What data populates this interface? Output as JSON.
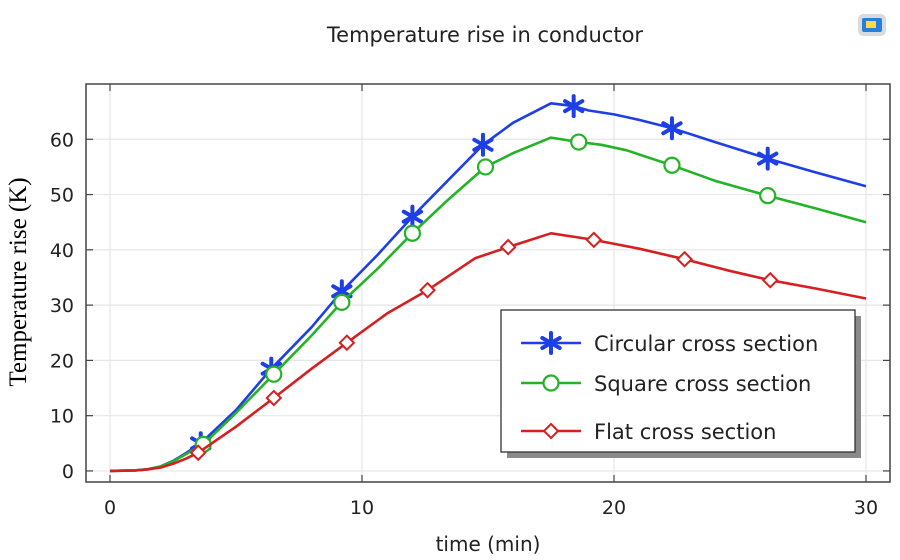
{
  "chart_data": {
    "type": "line",
    "title": "Temperature rise in conductor",
    "xlabel": "time (min)",
    "ylabel": "Temperature rise (K)",
    "xlim": [
      0,
      30
    ],
    "ylim": [
      -2,
      70
    ],
    "xticks": [
      0,
      10,
      20,
      30
    ],
    "yticks": [
      0,
      10,
      20,
      30,
      40,
      50,
      60
    ],
    "grid": true,
    "legend_position": "bottom-right",
    "series": [
      {
        "name": "Circular cross section",
        "color": "#1f3fe6",
        "marker": "asterisk",
        "x": [
          0,
          1,
          1.5,
          2,
          2.5,
          3,
          3.6,
          5,
          6.4,
          8,
          9.2,
          10.6,
          12,
          13.4,
          14.8,
          16,
          17.5,
          18.4,
          19,
          20,
          21,
          22.3,
          24,
          26.1,
          28,
          30
        ],
        "y": [
          0,
          0.1,
          0.3,
          0.8,
          1.8,
          3.2,
          5,
          11,
          18.5,
          26,
          32.5,
          39,
          46,
          52.5,
          59,
          63,
          66.5,
          66,
          65.2,
          64.5,
          63.5,
          62,
          59.5,
          56.5,
          54,
          51.5
        ],
        "marker_x": [
          3.6,
          6.4,
          9.2,
          12,
          14.8,
          18.4,
          22.3,
          26.1
        ]
      },
      {
        "name": "Square cross section",
        "color": "#22b327",
        "marker": "circle",
        "x": [
          0,
          1,
          1.5,
          2,
          2.5,
          3,
          3.7,
          5,
          6.5,
          8,
          9.2,
          10.6,
          12,
          13.4,
          14.9,
          16,
          17.5,
          18.6,
          19.5,
          20.5,
          22.3,
          24,
          26.1,
          28,
          30
        ],
        "y": [
          0,
          0.1,
          0.3,
          0.8,
          1.7,
          3,
          4.8,
          10.5,
          17.5,
          24.5,
          30.5,
          36.5,
          43,
          49,
          55,
          57.5,
          60.3,
          59.5,
          59,
          58,
          55.3,
          52.5,
          49.8,
          47.5,
          45
        ],
        "marker_x": [
          3.7,
          6.5,
          9.2,
          12,
          14.9,
          18.6,
          22.3,
          26.1
        ]
      },
      {
        "name": "Flat cross section",
        "color": "#d42020",
        "marker": "diamond",
        "x": [
          0,
          1,
          1.5,
          2,
          2.5,
          3,
          3.5,
          5,
          6.5,
          8,
          9.4,
          11,
          12.6,
          14.5,
          15.8,
          17.5,
          18.5,
          19.2,
          21,
          22.8,
          24.5,
          26.2,
          28,
          30
        ],
        "y": [
          0,
          0.1,
          0.3,
          0.6,
          1.3,
          2.2,
          3.3,
          8,
          13.2,
          18.5,
          23.2,
          28.5,
          32.7,
          38.5,
          40.5,
          43,
          42.3,
          41.8,
          40.2,
          38.3,
          36.3,
          34.5,
          33,
          31.2
        ],
        "marker_x": [
          3.5,
          6.5,
          9.4,
          12.6,
          15.8,
          19.2,
          22.8,
          26.2
        ]
      }
    ]
  },
  "icons": {
    "corner": "3d-view-icon"
  }
}
